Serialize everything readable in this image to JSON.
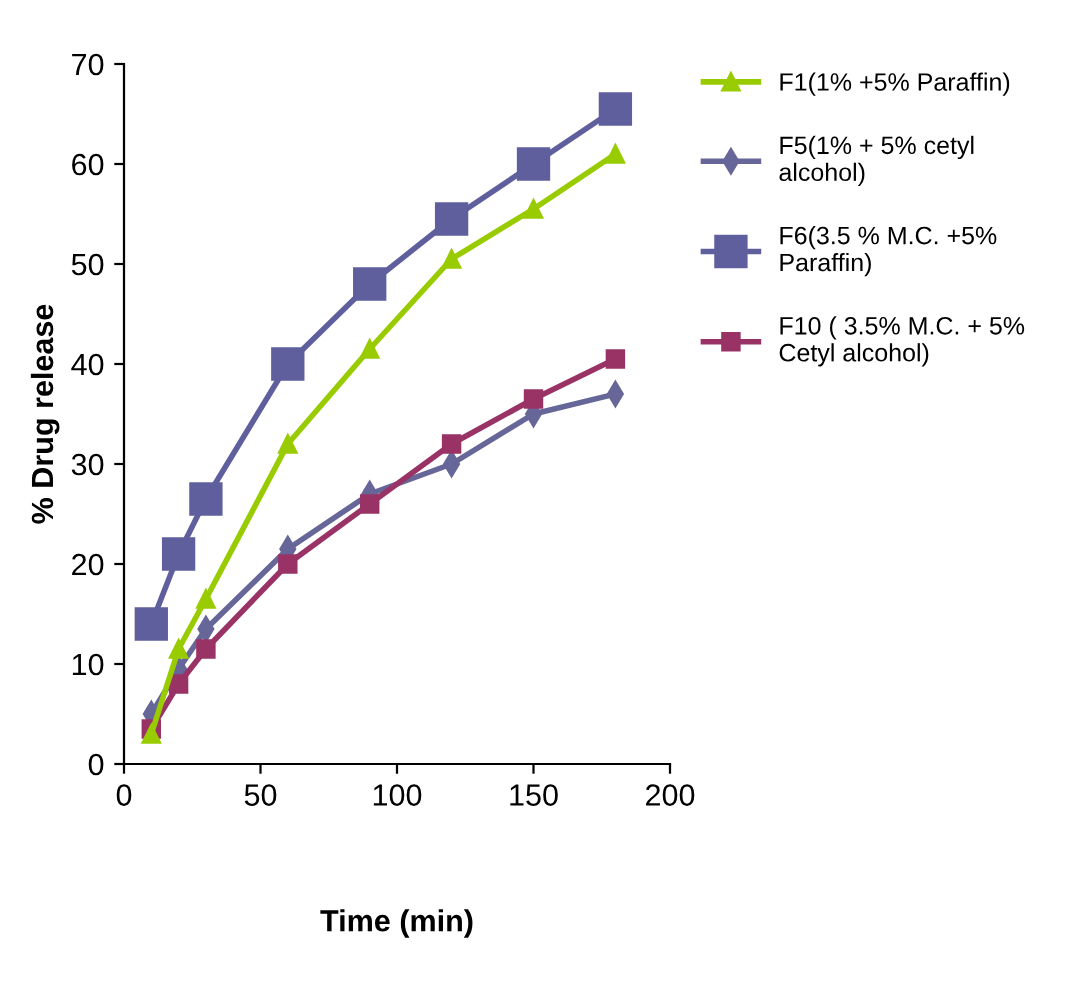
{
  "chart_data": {
    "type": "line",
    "xlabel": "Time (min)",
    "ylabel": "% Drug release",
    "x": [
      10,
      20,
      30,
      60,
      90,
      120,
      150,
      180
    ],
    "series": [
      {
        "name": "F1(1% +5% Paraffin)",
        "color": "#99cc00",
        "marker": "triangle",
        "values": [
          3,
          11.5,
          16.5,
          32,
          41.5,
          50.5,
          55.5,
          61
        ]
      },
      {
        "name": "F5(1% + 5% cetyl alcohol)",
        "color": "#666699",
        "marker": "diamond",
        "values": [
          5,
          9.5,
          13.5,
          21.5,
          27,
          30,
          35,
          37
        ]
      },
      {
        "name": "F6(3.5 % M.C. +5% Paraffin)",
        "color": "#5f5f9e",
        "marker": "square",
        "values": [
          14,
          21,
          26.5,
          40,
          48,
          54.5,
          60,
          65.5
        ]
      },
      {
        "name": "F10 ( 3.5% M.C. + 5% Cetyl alcohol)",
        "color": "#993366",
        "marker": "square",
        "values": [
          3.5,
          8,
          11.5,
          20,
          26,
          32,
          36.5,
          40.5
        ]
      }
    ],
    "xlim": [
      0,
      200
    ],
    "xticks": [
      0,
      50,
      100,
      150,
      200
    ],
    "ylim": [
      0,
      70
    ],
    "yticks": [
      0,
      10,
      20,
      30,
      40,
      50,
      60,
      70
    ],
    "grid": false,
    "legend": "right"
  }
}
